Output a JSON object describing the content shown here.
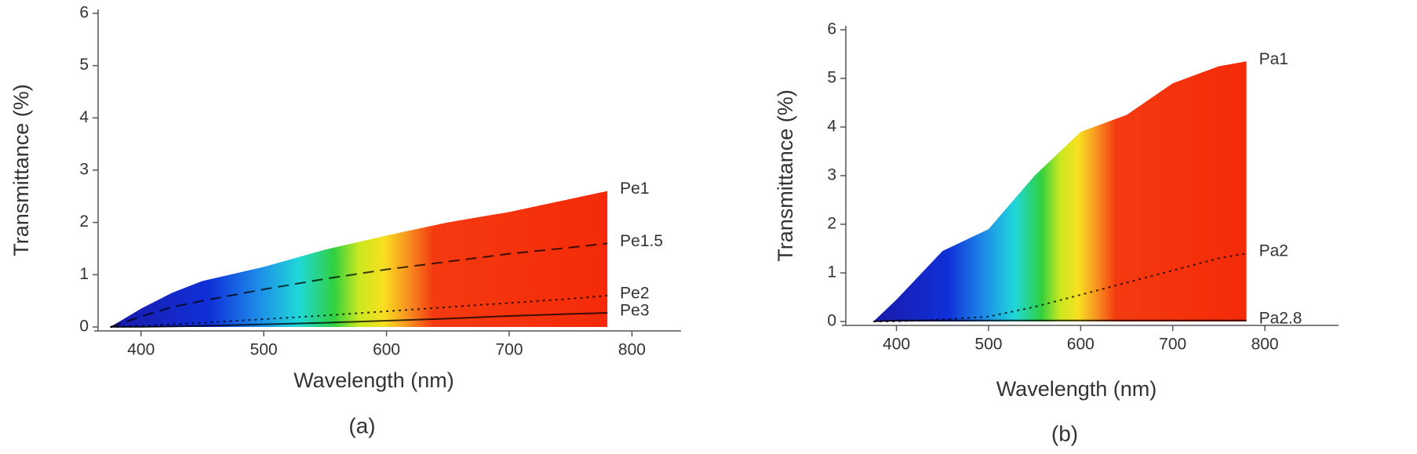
{
  "chart_data": [
    {
      "type": "line",
      "caption": "(a)",
      "xlabel": "Wavelength (nm)",
      "ylabel": "Transmittance (%)",
      "xlim": [
        365,
        840
      ],
      "xticks": [
        400,
        500,
        600,
        700,
        800
      ],
      "ylim": [
        0,
        6
      ],
      "yticks": [
        0,
        1,
        2,
        3,
        4,
        5,
        6
      ],
      "x": [
        375,
        400,
        425,
        450,
        500,
        550,
        600,
        650,
        700,
        750,
        780
      ],
      "series": [
        {
          "name": "Pe1",
          "color": "#000000",
          "line_style": "none",
          "fill_area": true,
          "values": [
            0,
            0.35,
            0.65,
            0.88,
            1.15,
            1.48,
            1.75,
            2.0,
            2.2,
            2.45,
            2.6
          ]
        },
        {
          "name": "Pe1.5",
          "color": "#000000",
          "line_style": "dashed",
          "values": [
            0,
            0.2,
            0.38,
            0.5,
            0.72,
            0.92,
            1.1,
            1.25,
            1.4,
            1.52,
            1.6
          ]
        },
        {
          "name": "Pe2",
          "color": "#000000",
          "line_style": "dotted",
          "values": [
            0,
            0.02,
            0.05,
            0.08,
            0.15,
            0.22,
            0.3,
            0.38,
            0.46,
            0.54,
            0.6
          ]
        },
        {
          "name": "Pe3",
          "color": "#000000",
          "line_style": "solid",
          "values": [
            0,
            0,
            0.01,
            0.02,
            0.05,
            0.08,
            0.12,
            0.16,
            0.21,
            0.25,
            0.27
          ]
        }
      ]
    },
    {
      "type": "line",
      "caption": "(b)",
      "xlabel": "Wavelength (nm)",
      "ylabel": "Transmittance (%)",
      "xlim": [
        345,
        880
      ],
      "xticks": [
        400,
        500,
        600,
        700,
        800
      ],
      "ylim": [
        0,
        6
      ],
      "yticks": [
        0,
        1,
        2,
        3,
        4,
        5,
        6
      ],
      "x": [
        375,
        400,
        425,
        450,
        500,
        550,
        600,
        650,
        700,
        750,
        780
      ],
      "series": [
        {
          "name": "Pa1",
          "color": "#000000",
          "line_style": "none",
          "fill_area": true,
          "values": [
            0,
            0.45,
            0.95,
            1.45,
            1.9,
            3.0,
            3.9,
            4.25,
            4.9,
            5.25,
            5.35
          ]
        },
        {
          "name": "Pa2",
          "color": "#000000",
          "line_style": "dotted",
          "values": [
            0,
            0,
            0.02,
            0.04,
            0.1,
            0.3,
            0.55,
            0.8,
            1.05,
            1.3,
            1.4
          ]
        },
        {
          "name": "Pa2.8",
          "color": "#000000",
          "line_style": "solid",
          "values": [
            0,
            0.02,
            0.02,
            0.02,
            0.02,
            0.02,
            0.02,
            0.02,
            0.02,
            0.02,
            0.02
          ]
        }
      ]
    }
  ]
}
